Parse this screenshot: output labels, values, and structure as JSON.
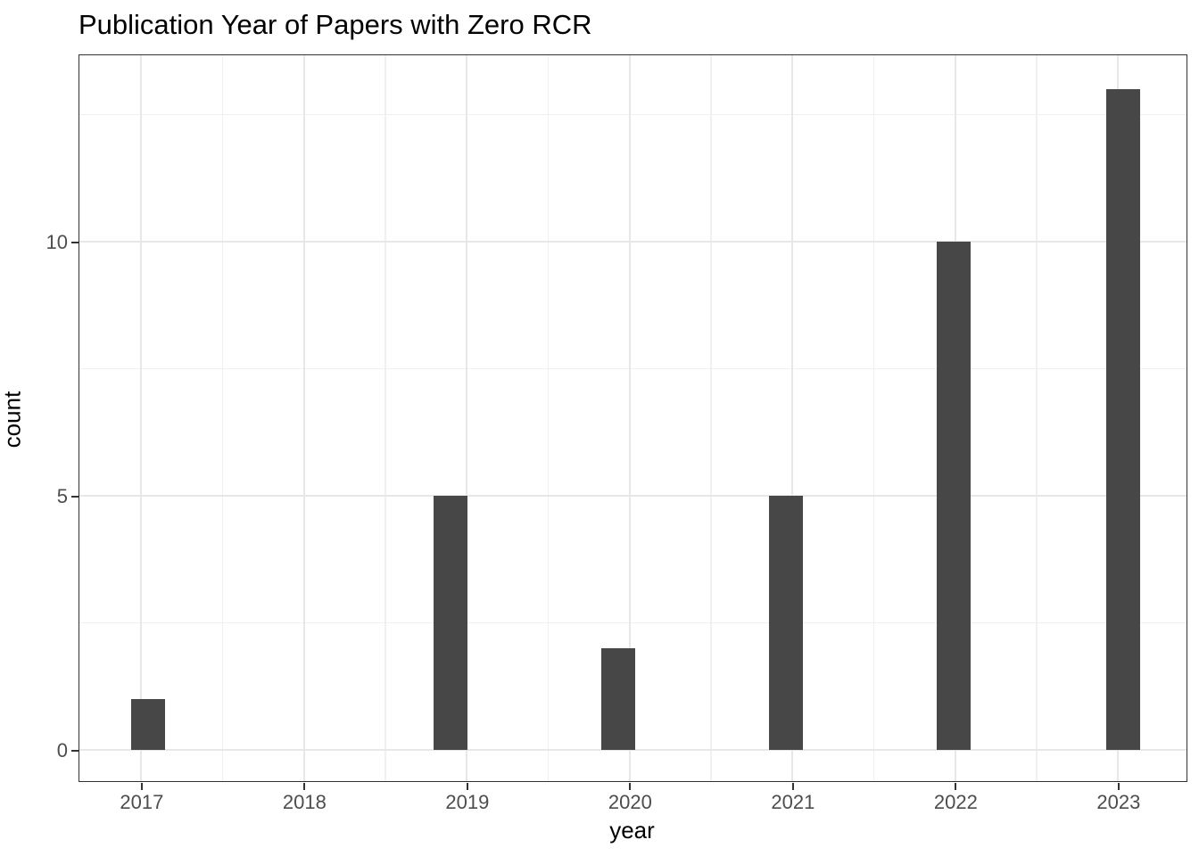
{
  "chart_data": {
    "type": "bar",
    "subtype": "histogram",
    "title": "Publication Year of Papers with Zero RCR",
    "xlabel": "year",
    "ylabel": "count",
    "categories": [
      2017,
      2018,
      2019,
      2020,
      2021,
      2022,
      2023
    ],
    "values": [
      1,
      0,
      5,
      2,
      5,
      10,
      13
    ],
    "bars": [
      {
        "year": 2017,
        "count": 1,
        "bin_center": 2017.04
      },
      {
        "year": 2018,
        "count": 0,
        "bin_center": 2018.0
      },
      {
        "year": 2019,
        "count": 5,
        "bin_center": 2018.9
      },
      {
        "year": 2020,
        "count": 2,
        "bin_center": 2019.93
      },
      {
        "year": 2021,
        "count": 5,
        "bin_center": 2020.96
      },
      {
        "year": 2022,
        "count": 10,
        "bin_center": 2021.99
      },
      {
        "year": 2023,
        "count": 13,
        "bin_center": 2023.03
      }
    ],
    "bin_width_years": 0.207,
    "x_ticks": [
      2017,
      2018,
      2019,
      2020,
      2021,
      2022,
      2023
    ],
    "y_ticks": [
      0,
      5,
      10
    ],
    "x_minor_gridlines": [
      2017.5,
      2018.5,
      2019.5,
      2020.5,
      2021.5,
      2022.5
    ],
    "y_minor_gridlines": [
      2.5,
      7.5,
      12.5
    ],
    "xlim": [
      2016.62,
      2023.42
    ],
    "ylim": [
      -0.61,
      13.67
    ],
    "grid": "major and minor, light gray on white panel",
    "legend": "none",
    "panel_border": true,
    "colors": {
      "bar_fill": "#474747",
      "grid_major": "#E7E7E7",
      "grid_minor": "#F0F0F0",
      "panel_border": "#333333",
      "tick_mark": "#333333",
      "tick_label": "#4D4D4D",
      "title_text": "#000000",
      "axis_title_text": "#000000",
      "background": "#FFFFFF"
    }
  }
}
